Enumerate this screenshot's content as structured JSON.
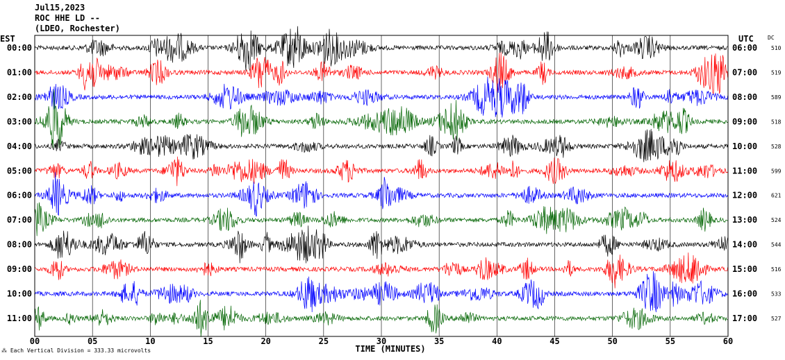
{
  "header": {
    "date": "Jul15,2023",
    "station": "ROC HHE LD --",
    "location": "(LDEO, Rochester)"
  },
  "chart_data": {
    "type": "line",
    "left_axis_label": "EST",
    "right_axis_label": "UTC",
    "dc_label": "DC",
    "xlabel": "TIME (MINUTES)",
    "xlim": [
      0,
      60
    ],
    "x_ticks": [
      "00",
      "05",
      "10",
      "15",
      "20",
      "25",
      "30",
      "35",
      "40",
      "45",
      "50",
      "55",
      "60"
    ],
    "grid_vertical": true,
    "trace_colors": [
      "#000000",
      "#ff0000",
      "#0000ff",
      "#006400"
    ],
    "rows": [
      {
        "est": "00:00",
        "utc": "06:00",
        "dc": "510"
      },
      {
        "est": "01:00",
        "utc": "07:00",
        "dc": "519"
      },
      {
        "est": "02:00",
        "utc": "08:00",
        "dc": "589"
      },
      {
        "est": "03:00",
        "utc": "09:00",
        "dc": "518"
      },
      {
        "est": "04:00",
        "utc": "10:00",
        "dc": "528"
      },
      {
        "est": "05:00",
        "utc": "11:00",
        "dc": "599"
      },
      {
        "est": "06:00",
        "utc": "12:00",
        "dc": "621"
      },
      {
        "est": "07:00",
        "utc": "13:00",
        "dc": "524"
      },
      {
        "est": "08:00",
        "utc": "14:00",
        "dc": "544"
      },
      {
        "est": "09:00",
        "utc": "15:00",
        "dc": "516"
      },
      {
        "est": "10:00",
        "utc": "16:00",
        "dc": "533"
      },
      {
        "est": "11:00",
        "utc": "17:00",
        "dc": "527"
      }
    ]
  },
  "footer": {
    "scale_note": "Each Vertical Division =  333.33 microvolts"
  }
}
